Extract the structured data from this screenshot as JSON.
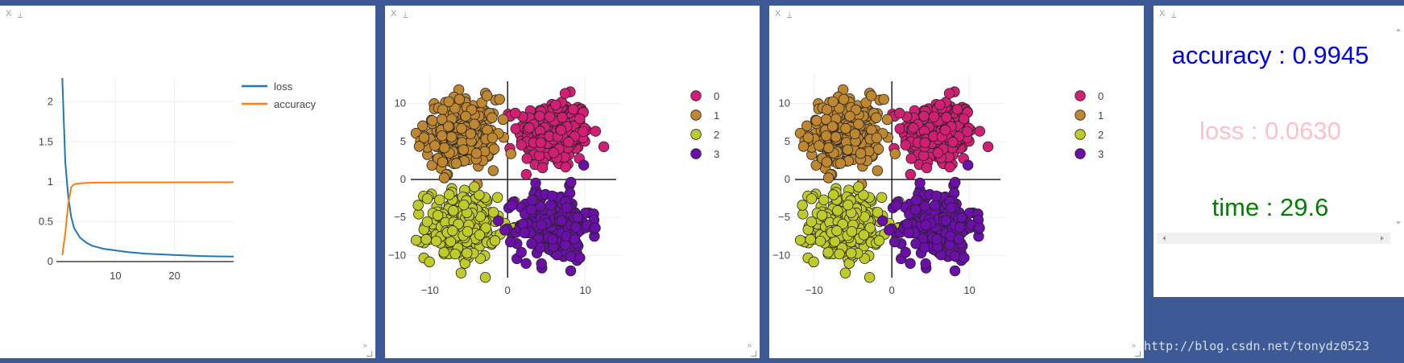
{
  "panes": {
    "close_label": "X",
    "download_label": "↓",
    "resize_label": "»"
  },
  "metrics": {
    "accuracy": {
      "text": "accuracy : 0.9945",
      "color": "#0000e6"
    },
    "loss": {
      "text": "loss : 0.0630",
      "color": "#ffc0cb"
    },
    "time": {
      "text": "time : 29.6",
      "color": "#008000"
    }
  },
  "watermark": "http://blog.csdn.net/tonydz0523",
  "colors": {
    "loss_line": "#1f77b4",
    "accuracy_line": "#ff7f0e",
    "class_0": "#d11f74",
    "class_1": "#be8730",
    "class_2": "#bfcb2a",
    "class_3": "#6a0fa8"
  },
  "chart_data": [
    {
      "type": "line",
      "title": "",
      "xlabel": "",
      "ylabel": "",
      "xlim": [
        0,
        30
      ],
      "ylim": [
        0,
        2.3
      ],
      "xticks": [
        "10",
        "20"
      ],
      "yticks": [
        "0",
        "0.5",
        "1",
        "1.5",
        "2"
      ],
      "grid": true,
      "legend_position": "top-right",
      "x": [
        1,
        1.5,
        2,
        2.5,
        3,
        4,
        5,
        6,
        7,
        8,
        10,
        12,
        15,
        18,
        21,
        24,
        27,
        30
      ],
      "series": [
        {
          "name": "loss",
          "values": [
            2.3,
            1.25,
            0.82,
            0.56,
            0.42,
            0.3,
            0.24,
            0.2,
            0.18,
            0.16,
            0.14,
            0.12,
            0.1,
            0.09,
            0.08,
            0.07,
            0.065,
            0.063
          ]
        },
        {
          "name": "accuracy",
          "values": [
            0.08,
            0.35,
            0.72,
            0.93,
            0.97,
            0.98,
            0.985,
            0.988,
            0.99,
            0.99,
            0.991,
            0.992,
            0.993,
            0.993,
            0.994,
            0.994,
            0.9945,
            0.9945
          ]
        }
      ]
    },
    {
      "type": "scatter",
      "title": "",
      "xlim": [
        -13.5,
        14.5
      ],
      "ylim": [
        -14,
        14
      ],
      "xticks": [
        "−10",
        "0",
        "10"
      ],
      "yticks": [
        "10",
        "5",
        "0",
        "−5",
        "−10"
      ],
      "legend_position": "top-right",
      "series": [
        {
          "name": "0",
          "center": [
            6,
            6
          ],
          "spread": 2.3,
          "count": 250
        },
        {
          "name": "1",
          "center": [
            -6,
            6
          ],
          "spread": 2.3,
          "count": 250
        },
        {
          "name": "2",
          "center": [
            -6,
            -6
          ],
          "spread": 2.3,
          "count": 250
        },
        {
          "name": "3",
          "center": [
            6,
            -6
          ],
          "spread": 2.3,
          "count": 250
        }
      ]
    },
    {
      "type": "scatter",
      "title": "",
      "xlim": [
        -13.5,
        14.5
      ],
      "ylim": [
        -14,
        14
      ],
      "xticks": [
        "−10",
        "0",
        "10"
      ],
      "yticks": [
        "10",
        "5",
        "0",
        "−5",
        "−10"
      ],
      "legend_position": "top-right",
      "series": [
        {
          "name": "0",
          "center": [
            6,
            6
          ],
          "spread": 2.3,
          "count": 250
        },
        {
          "name": "1",
          "center": [
            -6,
            6
          ],
          "spread": 2.3,
          "count": 250
        },
        {
          "name": "2",
          "center": [
            -6,
            -6
          ],
          "spread": 2.3,
          "count": 250
        },
        {
          "name": "3",
          "center": [
            6,
            -6
          ],
          "spread": 2.3,
          "count": 250
        }
      ]
    }
  ]
}
